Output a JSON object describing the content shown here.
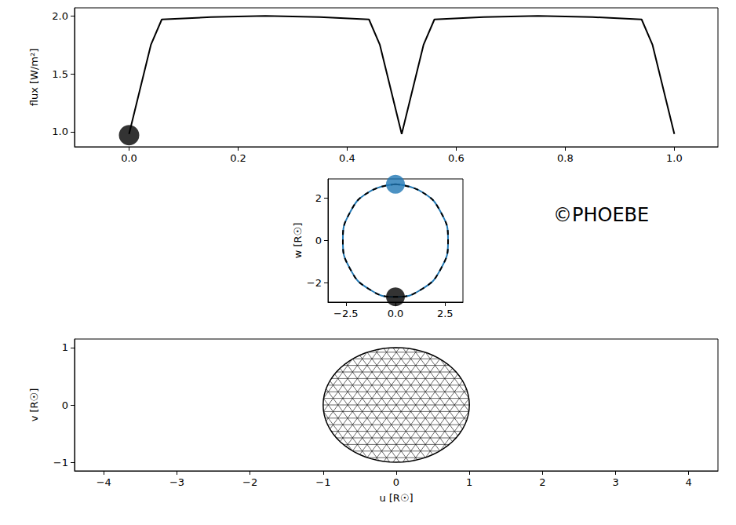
{
  "chart_data": [
    {
      "type": "line",
      "ylabel": "flux [W/m²]",
      "x": [
        0.0,
        0.04,
        0.06,
        0.15,
        0.25,
        0.35,
        0.44,
        0.46,
        0.5,
        0.54,
        0.56,
        0.65,
        0.75,
        0.85,
        0.94,
        0.96,
        1.0
      ],
      "values": [
        0.98,
        1.75,
        1.97,
        1.99,
        2.0,
        1.99,
        1.97,
        1.75,
        0.98,
        1.75,
        1.97,
        1.99,
        2.0,
        1.99,
        1.97,
        1.75,
        0.98
      ],
      "color": "#000000",
      "current": {
        "x": 0.0,
        "y": 0.97,
        "color": "#000000"
      },
      "xlim": [
        -0.1,
        1.08
      ],
      "xticks": [
        {
          "value": 0,
          "label": "0.0"
        },
        {
          "value": 0.2,
          "label": "0.2"
        },
        {
          "value": 0.4,
          "label": "0.4"
        },
        {
          "value": 0.6,
          "label": "0.6"
        },
        {
          "value": 0.8,
          "label": "0.8"
        },
        {
          "value": 1,
          "label": "1.0"
        }
      ],
      "ylim": [
        0.87,
        2.07
      ],
      "yticks": [
        {
          "value": 1,
          "label": "1.0"
        },
        {
          "value": 1.5,
          "label": "1.5"
        },
        {
          "value": 2,
          "label": "2.0"
        }
      ]
    },
    {
      "type": "orbit",
      "ylabel": "w [R☉]",
      "series": [
        {
          "color": "#1f77b4",
          "line_style": "solid",
          "values": [
            [
              0,
              2.65
            ],
            [
              1.325,
              2.29
            ],
            [
              2.29,
              1.325
            ],
            [
              2.65,
              0
            ],
            [
              2.29,
              -1.325
            ],
            [
              1.325,
              -2.29
            ],
            [
              0,
              -2.65
            ],
            [
              -1.325,
              -2.29
            ],
            [
              -2.29,
              -1.325
            ],
            [
              -2.65,
              0
            ],
            [
              -2.29,
              1.325
            ],
            [
              -1.325,
              2.29
            ],
            [
              0,
              2.65
            ]
          ],
          "current": [
            0,
            2.65
          ]
        },
        {
          "color": "#000000",
          "line_style": "dashed",
          "values": [
            [
              0,
              2.65
            ],
            [
              1.325,
              2.29
            ],
            [
              2.29,
              1.325
            ],
            [
              2.65,
              0
            ],
            [
              2.29,
              -1.325
            ],
            [
              1.325,
              -2.29
            ],
            [
              0,
              -2.65
            ],
            [
              -1.325,
              -2.29
            ],
            [
              -2.29,
              -1.325
            ],
            [
              -2.65,
              0
            ],
            [
              -2.29,
              1.325
            ],
            [
              -1.325,
              2.29
            ],
            [
              0,
              2.65
            ]
          ],
          "current": [
            0,
            -2.65
          ]
        }
      ],
      "xlim": [
        -3.4,
        3.4
      ],
      "xticks": [
        {
          "value": -2.5,
          "label": "−2.5"
        },
        {
          "value": 0,
          "label": "0.0"
        },
        {
          "value": 2.5,
          "label": "2.5"
        }
      ],
      "ylim": [
        -2.9,
        2.9
      ],
      "yticks": [
        {
          "value": -2,
          "label": "−2"
        },
        0,
        2
      ]
    },
    {
      "type": "mesh",
      "xlabel": "u [R☉]",
      "ylabel": "v [R☉]",
      "star": {
        "u": 0,
        "v": 0,
        "radius": 1
      },
      "color": "#000000",
      "xlim": [
        -4.4,
        4.4
      ],
      "xticks": [
        {
          "value": -4,
          "label": "−4"
        },
        {
          "value": -3,
          "label": "−3"
        },
        {
          "value": -2,
          "label": "−2"
        },
        {
          "value": -1,
          "label": "−1"
        },
        0,
        1,
        2,
        3,
        4
      ],
      "ylim": [
        -1.15,
        1.15
      ],
      "yticks": [
        {
          "value": -1,
          "label": "−1"
        },
        0,
        1
      ]
    }
  ],
  "credit": "©PHOEBE"
}
